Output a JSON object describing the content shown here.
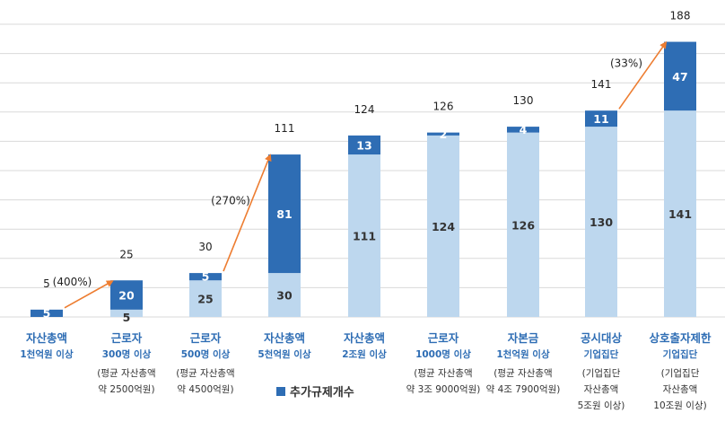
{
  "chart_data": {
    "type": "bar",
    "stacked": true,
    "ylim": [
      0,
      200
    ],
    "grid": true,
    "legend_position": "bottom-center",
    "legend": [
      {
        "name": "추가규제개수",
        "color": "#2e6db4"
      }
    ],
    "categories": [
      {
        "line1": "자산총액",
        "line2": "1천억원 이상",
        "notes": []
      },
      {
        "line1": "근로자",
        "line2": "300명 이상",
        "notes": [
          "(평균 자산총액",
          "약 2500억원)"
        ]
      },
      {
        "line1": "근로자",
        "line2": "500명 이상",
        "notes": [
          "(평균 자산총액",
          "약 4500억원)"
        ]
      },
      {
        "line1": "자산총액",
        "line2": "5천억원 이상",
        "notes": []
      },
      {
        "line1": "자산총액",
        "line2": "2조원 이상",
        "notes": []
      },
      {
        "line1": "근로자",
        "line2": "1000명 이상",
        "notes": [
          "(평균 자산총액",
          "약 3조 9000억원)"
        ]
      },
      {
        "line1": "자본금",
        "line2": "1천억원 이상",
        "notes": [
          "(평균 자산총액",
          "약 4조 7900억원)"
        ]
      },
      {
        "line1": "공시대상",
        "line2": "기업집단",
        "notes": [
          "(기업집단",
          "자산총액",
          "5조원 이상)"
        ]
      },
      {
        "line1": "상호출자제한",
        "line2": "기업집단",
        "notes": [
          "(기업집단",
          "자산총액",
          "10조원 이상)"
        ]
      }
    ],
    "series": [
      {
        "values": [
          0,
          5,
          25,
          30,
          111,
          124,
          126,
          130,
          141
        ],
        "color": "#bdd7ee"
      },
      {
        "name": "추가규제개수",
        "values": [
          5,
          20,
          5,
          81,
          13,
          2,
          4,
          11,
          47
        ],
        "color": "#2e6db4"
      }
    ],
    "totals": [
      5,
      25,
      30,
      111,
      124,
      126,
      130,
      141,
      188
    ],
    "annotations": [
      {
        "label": "(400%)",
        "from": 0,
        "to": 1
      },
      {
        "label": "(270%)",
        "from": 2,
        "to": 3
      },
      {
        "label": "(33%)",
        "from": 7,
        "to": 8
      }
    ],
    "colors": {
      "base": "#bdd7ee",
      "added": "#2e6db4",
      "arrow": "#ed7d31",
      "grid": "#d9d9d9",
      "category_text": "#2e6db4"
    }
  }
}
